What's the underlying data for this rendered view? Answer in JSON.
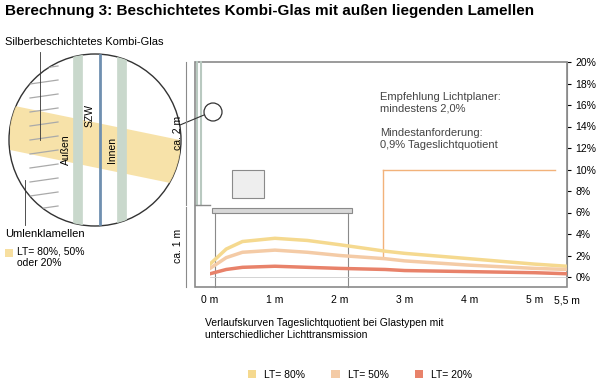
{
  "chart_data": {
    "type": "line",
    "title": "Berechnung 3: Beschichtetes Kombi-Glas mit außen liegenden Lamellen",
    "x": [
      0,
      0.25,
      0.5,
      1,
      1.5,
      2,
      2.7,
      3,
      4,
      5,
      5.5
    ],
    "series": [
      {
        "name": "LT= 80%",
        "color": "#f5d98f",
        "values": [
          1.2,
          2.6,
          3.3,
          3.6,
          3.4,
          3.0,
          2.4,
          2.2,
          1.7,
          1.2,
          1.0
        ]
      },
      {
        "name": "LT= 50%",
        "color": "#f4cba6",
        "values": [
          0.8,
          1.8,
          2.3,
          2.5,
          2.3,
          2.0,
          1.7,
          1.5,
          1.1,
          0.8,
          0.7
        ]
      },
      {
        "name": "LT= 20%",
        "color": "#e8826a",
        "values": [
          0.3,
          0.7,
          0.9,
          1.0,
          0.9,
          0.8,
          0.7,
          0.6,
          0.5,
          0.4,
          0.3
        ]
      }
    ],
    "xlim": [
      0,
      5.5
    ],
    "ylim": [
      0,
      20
    ],
    "xticks": [
      {
        "value": 0,
        "label": "0 m"
      },
      {
        "value": 1,
        "label": "1 m"
      },
      {
        "value": 2,
        "label": "2 m"
      },
      {
        "value": 3,
        "label": "3 m"
      },
      {
        "value": 4,
        "label": "4 m"
      },
      {
        "value": 5,
        "label": "5 m"
      },
      {
        "value": 5.5,
        "label": "5,5 m"
      }
    ],
    "yticks": [
      {
        "value": 0,
        "label": "0%"
      },
      {
        "value": 2,
        "label": "2%"
      },
      {
        "value": 4,
        "label": "4%"
      },
      {
        "value": 6,
        "label": "6%"
      },
      {
        "value": 8,
        "label": "8%"
      },
      {
        "value": 10,
        "label": "10%"
      },
      {
        "value": 12,
        "label": "12%"
      },
      {
        "value": 14,
        "label": "14%"
      },
      {
        "value": 16,
        "label": "16%"
      },
      {
        "value": 18,
        "label": "18%"
      },
      {
        "value": 20,
        "label": "20%"
      }
    ],
    "legend": "lower center",
    "annotations": {
      "recommendation": "Empfehlung Lichtplaner:\nmindestens 2,0%",
      "minimum": "Mindestanforderung:\n0,9% Tageslichtquotient",
      "height_upper": "ca. 2 m",
      "height_lower": "ca. 1 m",
      "glass_label": "Silberbeschichtetes Kombi-Glas",
      "outside": "Außen",
      "spacer": "SZW",
      "inside": "Innen",
      "louvres": "Umlenklamellen",
      "glass_legend": "LT= 80%, 50%\noder 20%",
      "caption": "Verlaufskurven Tageslichtquotient bei Glastypen mit\nunterschiedlicher Lichttransmission"
    }
  }
}
